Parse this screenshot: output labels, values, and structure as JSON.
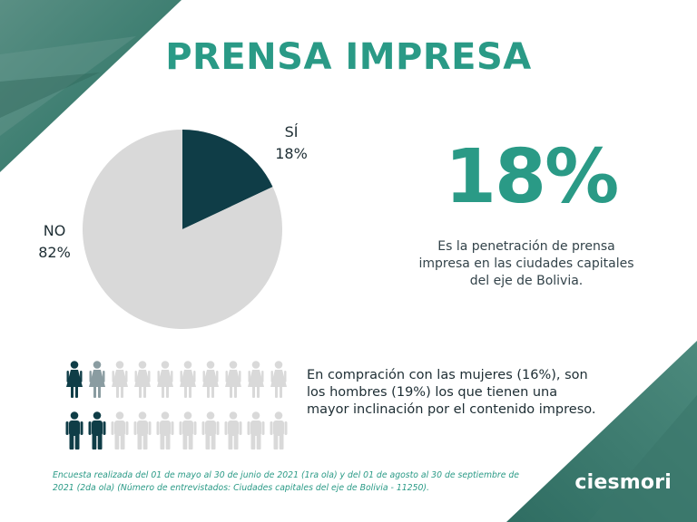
{
  "header": {
    "title": "PRENSA IMPRESA"
  },
  "chart_data": {
    "type": "pie",
    "title": "",
    "slices": [
      {
        "label": "SÍ",
        "value": 18,
        "value_label": "18%",
        "color": "#0f3d47"
      },
      {
        "label": "NO",
        "value": 82,
        "value_label": "82%",
        "color": "#d9d9d9"
      }
    ]
  },
  "highlight": {
    "value": "18%",
    "description": "Es la penetración de prensa impresa en las ciudades capitales del eje de Bolivia."
  },
  "comparison": {
    "text": "En compración con las mujeres (16%), son los hombres (19%) los que tienen una mayor inclinación por el contenido impreso.",
    "rows": [
      {
        "group": "mujeres",
        "total": 10,
        "highlighted": 1,
        "partial": 1
      },
      {
        "group": "hombres",
        "total": 10,
        "highlighted": 2,
        "partial": 0
      }
    ],
    "colors": {
      "highlight": "#0f3d47",
      "partial": "#8a9ca1",
      "base": "#d9d9d9"
    }
  },
  "footnote": "Encuesta realizada del  01 de mayo al 30 de junio de 2021 (1ra ola) y del 01 de agosto al 30 de  septiembre de 2021 (2da ola) (Número de entrevistados: Ciudades capitales del eje de Bolivia - 11250).",
  "brand": {
    "name": "ciesmori"
  },
  "theme": {
    "accent": "#2a9a86",
    "dark": "#0f3d47",
    "corner": "#3f7f72"
  }
}
